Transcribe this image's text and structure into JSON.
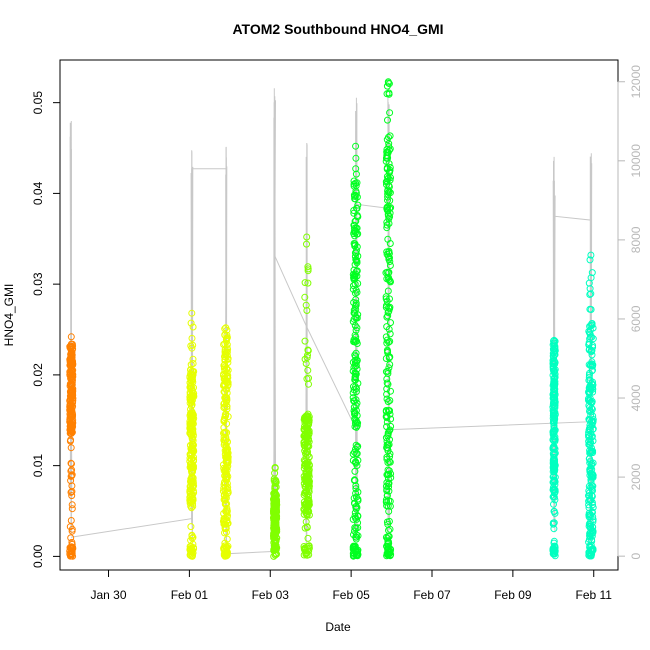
{
  "chart_data": {
    "type": "scatter",
    "title": "ATOM2 Southbound HNO4_GMI",
    "xlabel": "Date",
    "ylabel": "HNO4_GMI",
    "xlim": [
      "2018-01-28T19:12",
      "2018-02-11T14:24"
    ],
    "ylim": [
      -0.0015,
      0.0547
    ],
    "y2lim": [
      -350,
      12550
    ],
    "x_ticks": [
      {
        "label": "Jan 30",
        "value": "2018-01-30"
      },
      {
        "label": "Feb 01",
        "value": "2018-02-01"
      },
      {
        "label": "Feb 03",
        "value": "2018-02-03"
      },
      {
        "label": "Feb 05",
        "value": "2018-02-05"
      },
      {
        "label": "Feb 07",
        "value": "2018-02-07"
      },
      {
        "label": "Feb 09",
        "value": "2018-02-09"
      },
      {
        "label": "Feb 11",
        "value": "2018-02-11"
      }
    ],
    "y_ticks": [
      "0.00",
      "0.01",
      "0.02",
      "0.03",
      "0.04",
      "0.05"
    ],
    "y2_ticks": [
      "0",
      "2000",
      "4000",
      "6000",
      "8000",
      "10000",
      "12000"
    ],
    "grid": false,
    "legend": "none",
    "series": [
      {
        "color": "#FF8000",
        "clusters": [
          {
            "t": "2018-01-29T01:54",
            "width_days": 0.08,
            "hno4_max": 0.0242,
            "dense_low": 0.0135,
            "dense_high": 0.0232
          }
        ]
      },
      {
        "color": "#E6FF00",
        "clusters": [
          {
            "t": "2018-02-01T01:26",
            "width_days": 0.1,
            "hno4_max": 0.0268,
            "dense_low": 0.0055,
            "dense_high": 0.021
          },
          {
            "t": "2018-02-01T21:36",
            "width_days": 0.12,
            "hno4_max": 0.0252,
            "dense_low": 0.0035,
            "dense_high": 0.0245
          }
        ]
      },
      {
        "color": "#80FF00",
        "clusters": [
          {
            "t": "2018-02-03T02:53",
            "width_days": 0.08,
            "hno4_max": 0.0098,
            "dense_low": 0.0015,
            "dense_high": 0.007
          },
          {
            "t": "2018-02-03T21:36",
            "width_days": 0.14,
            "hno4_max": 0.0352,
            "dense_low": 0.0045,
            "dense_high": 0.0155
          }
        ]
      },
      {
        "color": "#00FF20",
        "clusters": [
          {
            "t": "2018-02-05T02:38",
            "width_days": 0.12,
            "hno4_max": 0.0452,
            "dense_low": 0.0,
            "dense_high": 0.0412
          },
          {
            "t": "2018-02-05T22:05",
            "width_days": 0.12,
            "hno4_max": 0.0523,
            "dense_low": 0.0,
            "dense_high": 0.0465
          }
        ]
      },
      {
        "color": "#00FFC0",
        "clusters": [
          {
            "t": "2018-02-10T00:29",
            "width_days": 0.06,
            "hno4_max": 0.0238,
            "dense_low": 0.0065,
            "dense_high": 0.0238
          },
          {
            "t": "2018-02-10T22:19",
            "width_days": 0.12,
            "hno4_max": 0.0332,
            "dense_low": 0.0015,
            "dense_high": 0.0255
          }
        ]
      }
    ],
    "altitude_series": {
      "color": "#c8c8c8",
      "axis": "right",
      "profiles": [
        {
          "t": "2018-01-29T01:41",
          "peak": 11200
        },
        {
          "t": "2018-02-01T01:26",
          "peak": 10400
        },
        {
          "t": "2018-02-01T21:50",
          "peak": 10400
        },
        {
          "t": "2018-02-03T02:38",
          "peak": 12000
        },
        {
          "t": "2018-02-03T21:36",
          "peak": 10600
        },
        {
          "t": "2018-02-05T03:07",
          "peak": 11800
        },
        {
          "t": "2018-02-05T22:19",
          "peak": 11800
        },
        {
          "t": "2018-02-10T00:29",
          "peak": 10100
        },
        {
          "t": "2018-02-10T22:19",
          "peak": 10200
        }
      ],
      "connector": [
        {
          "t": "2018-01-29T01:41",
          "alt": 480
        },
        {
          "t": "2018-02-01T01:26",
          "alt": 950
        },
        {
          "t": "2018-02-01T01:26",
          "alt": 9800
        },
        {
          "t": "2018-02-01T21:50",
          "alt": 9800
        },
        {
          "t": "2018-02-01T21:50",
          "alt": 60
        },
        {
          "t": "2018-02-03T02:38",
          "alt": 120
        },
        {
          "t": "2018-02-03T02:38",
          "alt": 7600
        },
        {
          "t": "2018-02-03T21:36",
          "alt": 5800
        },
        {
          "t": "2018-02-05T03:07",
          "alt": 3200
        },
        {
          "t": "2018-02-05T03:07",
          "alt": 8900
        },
        {
          "t": "2018-02-05T22:19",
          "alt": 8800
        },
        {
          "t": "2018-02-05T22:19",
          "alt": 3200
        },
        {
          "t": "2018-02-10T22:19",
          "alt": 3400
        },
        {
          "t": "2018-02-10T22:19",
          "alt": 8500
        },
        {
          "t": "2018-02-10T00:29",
          "alt": 8600
        },
        {
          "t": "2018-02-10T00:29",
          "alt": 10100
        }
      ]
    }
  }
}
